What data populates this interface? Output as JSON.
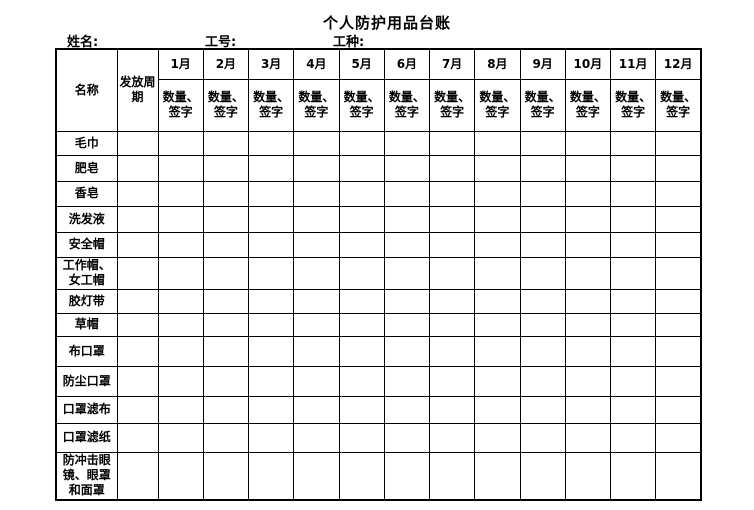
{
  "title": "个人防护用品台账",
  "fields": {
    "name_label": "姓名:",
    "employee_id_label": "工号:",
    "job_type_label": "工种:"
  },
  "table": {
    "name_header": "名称",
    "cycle_header": "发放周期",
    "sub_header": "数量、签字",
    "months": [
      "1月",
      "2月",
      "3月",
      "4月",
      "5月",
      "6月",
      "7月",
      "8月",
      "9月",
      "10月",
      "11月",
      "12月"
    ],
    "items": [
      "毛巾",
      "肥皂",
      "香皂",
      "洗发液",
      "安全帽",
      "工作帽、女工帽",
      "胶灯带",
      "草帽",
      "布口罩",
      "防尘口罩",
      "口罩滤布",
      "口罩滤纸",
      "防冲击眼镜、眼罩和面罩"
    ]
  }
}
